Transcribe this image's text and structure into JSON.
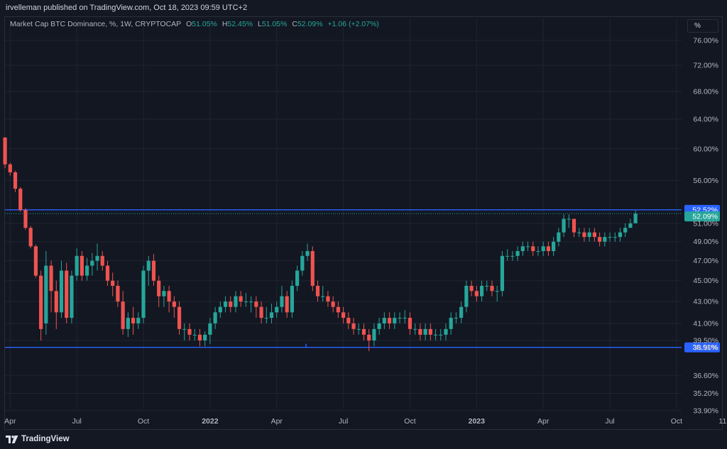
{
  "header": {
    "published_text": "irvelleman published on TradingView.com, Oct 18, 2023 09:59 UTC+2"
  },
  "legend": {
    "symbol": "Market Cap BTC Dominance, %, 1W, CRYPTOCAP",
    "open_label": "O",
    "open_value": "51.05%",
    "high_label": "H",
    "high_value": "52.45%",
    "low_label": "L",
    "low_value": "51.05%",
    "close_label": "C",
    "close_value": "52.09%",
    "change": "+1.06 (+2.07%)"
  },
  "scale_button": {
    "label": "%"
  },
  "footer": {
    "brand": "TradingView"
  },
  "colors": {
    "up": "#26a69a",
    "down": "#ef5350",
    "level_line": "#2962ff",
    "grid": "#1f2433",
    "axis_text": "#b2b5be",
    "last_price_bg": "#26a69a",
    "level_label_bg": "#2962ff",
    "background": "#131722"
  },
  "chart_data": {
    "type": "candlestick",
    "scale": "log",
    "y_tick_labels": [
      "76.00%",
      "72.00%",
      "68.00%",
      "64.00%",
      "60.00%",
      "56.00%",
      "51.00%",
      "49.00%",
      "47.00%",
      "45.00%",
      "43.00%",
      "41.00%",
      "39.50%",
      "38.90%",
      "36.60%",
      "35.20%",
      "33.90%"
    ],
    "y_ticks": [
      76,
      72,
      68,
      64,
      60,
      56,
      51,
      49,
      47,
      45,
      43,
      41,
      39.5,
      38.9,
      36.6,
      35.2,
      33.9
    ],
    "x_tick_labels": [
      {
        "label": "Apr",
        "week": 0,
        "bold": false
      },
      {
        "label": "Jul",
        "week": 13,
        "bold": false
      },
      {
        "label": "Oct",
        "week": 26,
        "bold": false
      },
      {
        "label": "2022",
        "week": 39,
        "bold": true
      },
      {
        "label": "Apr",
        "week": 52,
        "bold": false
      },
      {
        "label": "Jul",
        "week": 65,
        "bold": false
      },
      {
        "label": "Oct",
        "week": 78,
        "bold": false
      },
      {
        "label": "2023",
        "week": 91,
        "bold": true
      },
      {
        "label": "Apr",
        "week": 104,
        "bold": false
      },
      {
        "label": "Jul",
        "week": 117,
        "bold": false
      },
      {
        "label": "Oct",
        "week": 130,
        "bold": false
      },
      {
        "label": "11",
        "week": 139,
        "bold": false
      }
    ],
    "horizontal_levels": [
      {
        "value": 52.52,
        "label": "52.52%"
      },
      {
        "value": 38.91,
        "label": "38.91%"
      }
    ],
    "last_price": {
      "value": 52.09,
      "label": "52.09%"
    },
    "candles": [
      [
        -1,
        61.5,
        58.0,
        61.5,
        57.5
      ],
      [
        0,
        58.0,
        57.0,
        58.2,
        56.6
      ],
      [
        1,
        57.0,
        55.0,
        57.2,
        54.6
      ],
      [
        2,
        55.0,
        52.5,
        55.2,
        52.3
      ],
      [
        3,
        52.5,
        50.5,
        52.7,
        50.3
      ],
      [
        4,
        50.5,
        48.5,
        50.7,
        48.3
      ],
      [
        5,
        48.5,
        45.5,
        48.7,
        45.3
      ],
      [
        6,
        45.5,
        40.5,
        46.0,
        39.5
      ],
      [
        7,
        41.0,
        46.5,
        48.0,
        40.0
      ],
      [
        8,
        46.5,
        44.0,
        47.0,
        42.0
      ],
      [
        9,
        44.0,
        42.0,
        45.0,
        40.5
      ],
      [
        10,
        42.0,
        46.0,
        47.0,
        41.5
      ],
      [
        11,
        46.0,
        41.5,
        46.8,
        41.0
      ],
      [
        12,
        41.5,
        45.5,
        46.0,
        41.0
      ],
      [
        13,
        45.5,
        47.5,
        48.3,
        45.0
      ],
      [
        14,
        47.5,
        45.5,
        48.0,
        45.0
      ],
      [
        15,
        45.5,
        46.5,
        47.3,
        45.0
      ],
      [
        16,
        46.5,
        47.0,
        47.8,
        45.5
      ],
      [
        17,
        47.0,
        47.5,
        48.8,
        46.0
      ],
      [
        18,
        47.5,
        46.5,
        48.0,
        46.0
      ],
      [
        19,
        46.5,
        45.0,
        47.0,
        44.5
      ],
      [
        20,
        45.0,
        44.5,
        45.8,
        43.5
      ],
      [
        21,
        44.5,
        43.0,
        45.0,
        42.5
      ],
      [
        22,
        43.0,
        40.5,
        44.0,
        40.0
      ],
      [
        23,
        40.5,
        41.5,
        42.0,
        39.8
      ],
      [
        24,
        41.5,
        41.0,
        42.5,
        40.0
      ],
      [
        25,
        41.0,
        41.5,
        42.0,
        40.5
      ],
      [
        26,
        41.5,
        46.0,
        46.5,
        41.0
      ],
      [
        27,
        46.0,
        47.0,
        47.5,
        44.5
      ],
      [
        28,
        47.0,
        45.0,
        47.7,
        44.5
      ],
      [
        29,
        45.0,
        43.5,
        45.5,
        42.5
      ],
      [
        30,
        43.5,
        44.0,
        44.5,
        42.5
      ],
      [
        31,
        44.0,
        43.0,
        44.5,
        42.0
      ],
      [
        32,
        43.0,
        42.5,
        43.5,
        41.5
      ],
      [
        33,
        42.5,
        40.5,
        43.0,
        40.0
      ],
      [
        34,
        40.5,
        40.5,
        41.0,
        39.5
      ],
      [
        35,
        40.5,
        40.0,
        41.0,
        39.5
      ],
      [
        36,
        40.0,
        40.0,
        40.5,
        39.5
      ],
      [
        37,
        40.0,
        39.5,
        40.5,
        39.0
      ],
      [
        38,
        39.5,
        40.0,
        40.3,
        39.0
      ],
      [
        39,
        40.0,
        41.0,
        41.5,
        39.2
      ],
      [
        40,
        41.0,
        42.0,
        42.5,
        40.5
      ],
      [
        41,
        42.0,
        42.5,
        43.0,
        41.5
      ],
      [
        42,
        42.5,
        43.0,
        43.5,
        42.0
      ],
      [
        43,
        43.0,
        42.5,
        43.5,
        42.0
      ],
      [
        44,
        42.5,
        43.5,
        44.0,
        42.0
      ],
      [
        45,
        43.5,
        43.0,
        44.0,
        42.5
      ],
      [
        46,
        43.0,
        43.0,
        43.8,
        42.5
      ],
      [
        47,
        43.0,
        43.0,
        43.5,
        42.0
      ],
      [
        48,
        43.0,
        42.5,
        43.5,
        41.5
      ],
      [
        49,
        42.5,
        41.5,
        43.0,
        41.0
      ],
      [
        50,
        41.5,
        41.5,
        42.5,
        41.0
      ],
      [
        51,
        41.5,
        42.0,
        42.8,
        41.0
      ],
      [
        52,
        42.0,
        42.5,
        43.0,
        41.5
      ],
      [
        53,
        42.5,
        43.5,
        44.5,
        42.0
      ],
      [
        54,
        43.5,
        42.0,
        44.0,
        41.5
      ],
      [
        55,
        42.0,
        44.5,
        45.0,
        41.5
      ],
      [
        56,
        44.5,
        46.0,
        46.5,
        44.0
      ],
      [
        57,
        46.0,
        47.5,
        48.0,
        45.5
      ],
      [
        58,
        47.5,
        48.0,
        48.8,
        47.0
      ],
      [
        59,
        48.0,
        44.5,
        48.5,
        44.0
      ],
      [
        60,
        44.5,
        43.5,
        45.0,
        43.0
      ],
      [
        61,
        43.5,
        43.5,
        44.5,
        43.0
      ],
      [
        62,
        43.5,
        43.0,
        44.0,
        42.5
      ],
      [
        63,
        43.0,
        42.5,
        43.5,
        42.0
      ],
      [
        64,
        42.5,
        42.0,
        43.0,
        41.5
      ],
      [
        65,
        42.0,
        41.5,
        42.5,
        41.0
      ],
      [
        66,
        41.5,
        41.0,
        42.0,
        40.5
      ],
      [
        67,
        41.0,
        40.5,
        41.5,
        40.0
      ],
      [
        68,
        40.5,
        40.5,
        41.0,
        40.0
      ],
      [
        69,
        40.5,
        40.0,
        41.0,
        39.5
      ],
      [
        70,
        40.0,
        39.5,
        40.5,
        38.6
      ],
      [
        71,
        39.5,
        40.5,
        41.0,
        39.0
      ],
      [
        72,
        40.5,
        41.0,
        41.5,
        40.0
      ],
      [
        73,
        41.0,
        41.5,
        42.0,
        40.5
      ],
      [
        74,
        41.5,
        41.0,
        42.0,
        40.5
      ],
      [
        75,
        41.0,
        41.5,
        42.0,
        40.5
      ],
      [
        76,
        41.5,
        41.5,
        42.0,
        41.0
      ],
      [
        77,
        41.5,
        41.5,
        42.2,
        41.0
      ],
      [
        78,
        41.5,
        40.5,
        42.0,
        40.0
      ],
      [
        79,
        40.5,
        40.5,
        41.0,
        40.0
      ],
      [
        80,
        40.5,
        40.0,
        41.0,
        39.5
      ],
      [
        81,
        40.0,
        40.5,
        41.0,
        39.5
      ],
      [
        82,
        40.5,
        40.0,
        41.0,
        39.5
      ],
      [
        83,
        40.0,
        40.0,
        40.5,
        39.5
      ],
      [
        84,
        40.0,
        40.0,
        40.5,
        39.5
      ],
      [
        85,
        40.0,
        40.5,
        41.0,
        39.5
      ],
      [
        86,
        40.5,
        41.5,
        42.0,
        40.0
      ],
      [
        87,
        41.5,
        41.5,
        42.0,
        41.0
      ],
      [
        88,
        41.5,
        42.5,
        43.0,
        41.0
      ],
      [
        89,
        42.5,
        44.5,
        45.0,
        42.0
      ],
      [
        90,
        44.5,
        44.0,
        45.0,
        43.5
      ],
      [
        91,
        44.0,
        43.5,
        44.5,
        43.0
      ],
      [
        92,
        43.5,
        44.5,
        45.0,
        43.0
      ],
      [
        93,
        44.5,
        44.5,
        45.0,
        44.0
      ],
      [
        94,
        44.5,
        44.0,
        45.0,
        43.5
      ],
      [
        95,
        44.0,
        44.0,
        44.5,
        43.0
      ],
      [
        96,
        44.0,
        47.5,
        48.0,
        43.5
      ],
      [
        97,
        47.5,
        47.5,
        48.2,
        47.0
      ],
      [
        98,
        47.5,
        47.5,
        48.0,
        47.0
      ],
      [
        99,
        47.5,
        48.0,
        48.5,
        47.0
      ],
      [
        100,
        48.0,
        48.5,
        49.0,
        47.5
      ],
      [
        101,
        48.5,
        48.5,
        49.0,
        48.0
      ],
      [
        102,
        48.5,
        48.0,
        49.0,
        47.5
      ],
      [
        103,
        48.0,
        48.0,
        48.5,
        47.5
      ],
      [
        104,
        48.0,
        48.5,
        49.0,
        47.5
      ],
      [
        105,
        48.5,
        48.0,
        49.0,
        47.5
      ],
      [
        106,
        48.0,
        49.0,
        49.5,
        47.5
      ],
      [
        107,
        49.0,
        50.0,
        50.5,
        48.5
      ],
      [
        108,
        50.0,
        51.5,
        52.0,
        49.5
      ],
      [
        109,
        51.5,
        51.5,
        52.0,
        50.5
      ],
      [
        110,
        51.5,
        50.0,
        51.5,
        49.5
      ],
      [
        111,
        50.0,
        50.0,
        50.5,
        49.5
      ],
      [
        112,
        50.0,
        49.5,
        50.5,
        49.0
      ],
      [
        113,
        49.5,
        50.0,
        50.5,
        49.0
      ],
      [
        114,
        50.0,
        49.5,
        50.5,
        49.0
      ],
      [
        115,
        49.5,
        49.0,
        50.0,
        48.5
      ],
      [
        116,
        49.0,
        49.5,
        50.0,
        48.5
      ],
      [
        117,
        49.5,
        49.5,
        50.0,
        49.0
      ],
      [
        118,
        49.5,
        49.5,
        50.0,
        49.0
      ],
      [
        119,
        49.5,
        50.0,
        50.5,
        49.0
      ],
      [
        120,
        50.0,
        50.5,
        51.0,
        49.5
      ],
      [
        121,
        50.5,
        51.0,
        51.5,
        50.5
      ],
      [
        122,
        51.0,
        52.09,
        52.45,
        51.0
      ]
    ]
  }
}
